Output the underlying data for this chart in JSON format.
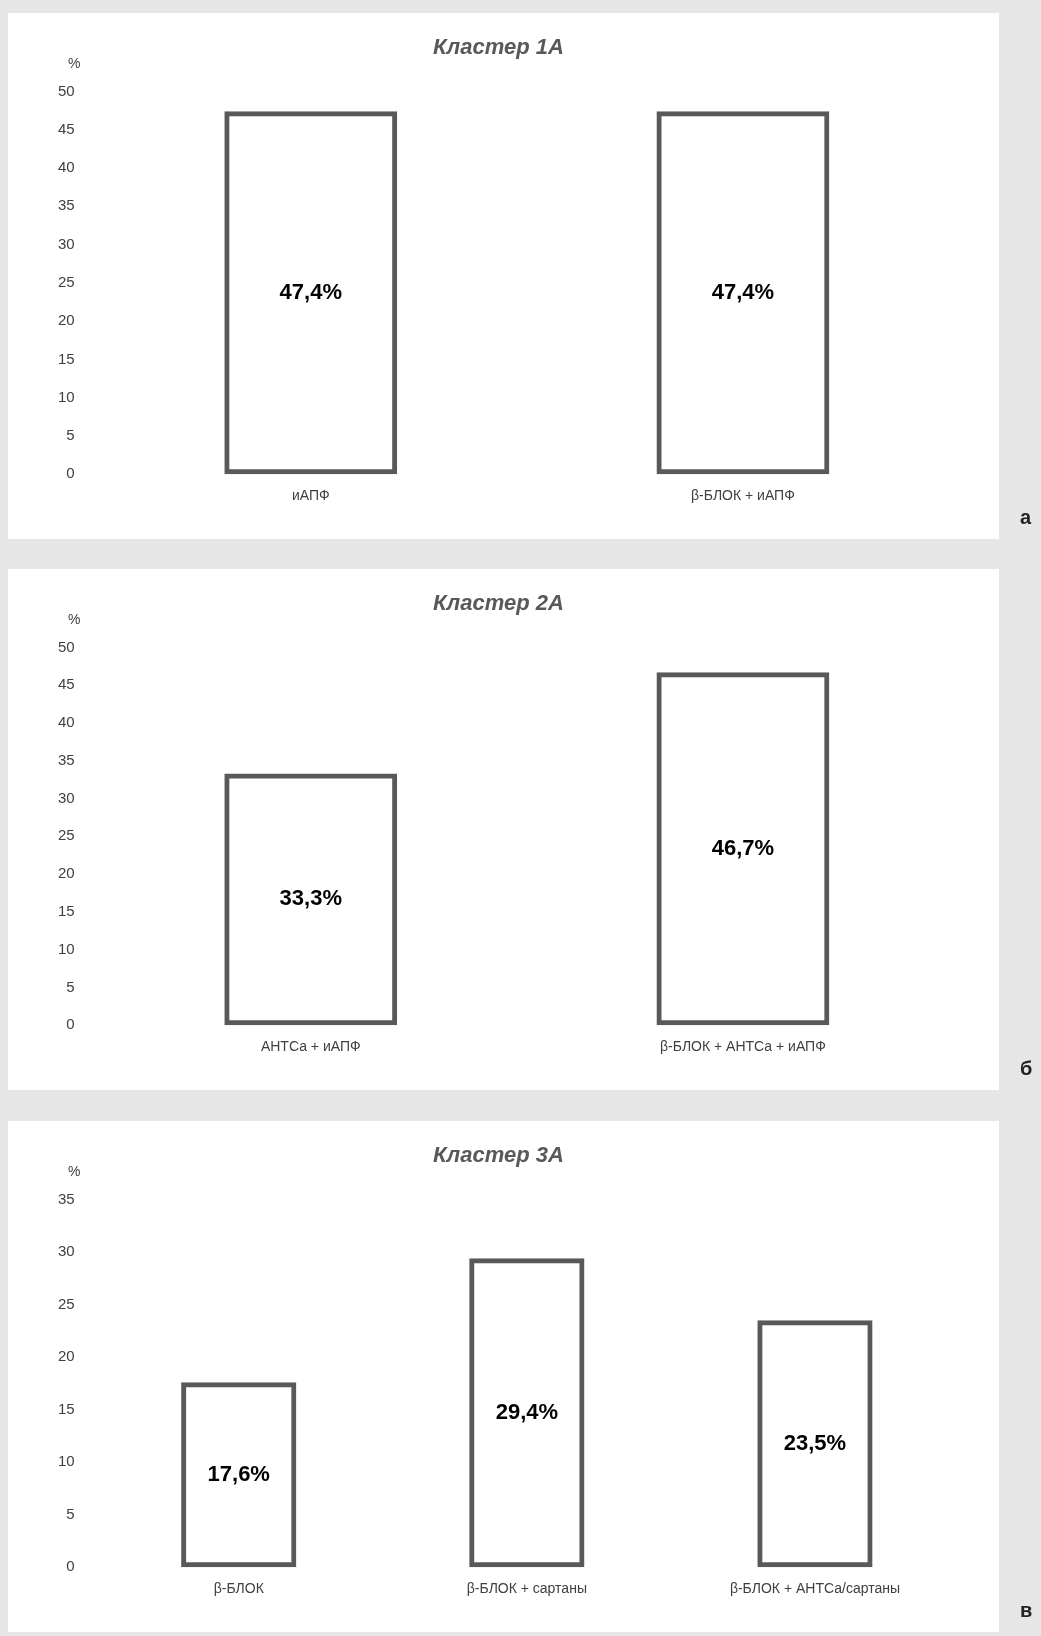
{
  "chart_data": [
    {
      "type": "bar",
      "title": "Кластер 1А",
      "ylabel": "%",
      "categories": [
        "иАПФ",
        "β-БЛОК + иАПФ"
      ],
      "values": [
        47.4,
        47.4
      ],
      "value_labels": [
        "47,4%",
        "47,4%"
      ],
      "color": "#595959",
      "ylim": [
        0,
        50
      ],
      "yticks": [
        0,
        5,
        10,
        15,
        20,
        25,
        30,
        35,
        40,
        45,
        50
      ],
      "grid": false,
      "legend": false,
      "annotations": [
        "а"
      ]
    },
    {
      "type": "bar",
      "title": "Кластер 2А",
      "ylabel": "%",
      "categories": [
        "АНТСа + иАПФ",
        "β-БЛОК + АНТСа + иАПФ"
      ],
      "values": [
        33.3,
        46.7
      ],
      "value_labels": [
        "33,3%",
        "46,7%"
      ],
      "color": "#595959",
      "ylim": [
        0,
        50
      ],
      "yticks": [
        0,
        5,
        10,
        15,
        20,
        25,
        30,
        35,
        40,
        45,
        50
      ],
      "grid": false,
      "legend": false,
      "annotations": [
        "б"
      ]
    },
    {
      "type": "bar",
      "title": "Кластер 3А",
      "ylabel": "%",
      "categories": [
        "β-БЛОК",
        "β-БЛОК + сартаны",
        "β-БЛОК + АНТСа/сартаны"
      ],
      "values": [
        17.6,
        29.4,
        23.5
      ],
      "value_labels": [
        "17,6%",
        "29,4%",
        "23,5%"
      ],
      "color": "#595959",
      "ylim": [
        0,
        35
      ],
      "yticks": [
        0,
        5,
        10,
        15,
        20,
        25,
        30,
        35
      ],
      "grid": false,
      "legend": false,
      "annotations": [
        "в"
      ]
    }
  ]
}
